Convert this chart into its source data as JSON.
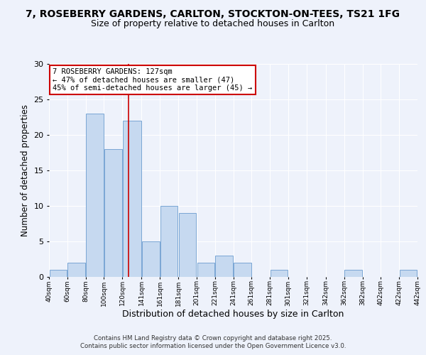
{
  "title1": "7, ROSEBERRY GARDENS, CARLTON, STOCKTON-ON-TEES, TS21 1FG",
  "title2": "Size of property relative to detached houses in Carlton",
  "xlabel": "Distribution of detached houses by size in Carlton",
  "ylabel": "Number of detached properties",
  "bins": [
    40,
    60,
    80,
    100,
    120,
    141,
    161,
    181,
    201,
    221,
    241,
    261,
    281,
    301,
    321,
    342,
    362,
    382,
    402,
    422,
    442
  ],
  "counts": [
    1,
    2,
    23,
    18,
    22,
    5,
    10,
    9,
    2,
    3,
    2,
    0,
    1,
    0,
    0,
    0,
    1,
    0,
    0,
    1
  ],
  "bar_color": "#c6d9f0",
  "bar_edge_color": "#7aa6d4",
  "ref_line_x": 127,
  "ref_line_color": "#cc0000",
  "annotation_text": "7 ROSEBERRY GARDENS: 127sqm\n← 47% of detached houses are smaller (47)\n45% of semi-detached houses are larger (45) →",
  "annotation_box_color": "#ffffff",
  "annotation_box_edge": "#cc0000",
  "ylim": [
    0,
    30
  ],
  "yticks": [
    0,
    5,
    10,
    15,
    20,
    25,
    30
  ],
  "bg_color": "#eef2fb",
  "footer1": "Contains HM Land Registry data © Crown copyright and database right 2025.",
  "footer2": "Contains public sector information licensed under the Open Government Licence v3.0.",
  "title1_fontsize": 10,
  "title2_fontsize": 9,
  "xlabel_fontsize": 9,
  "ylabel_fontsize": 8.5
}
